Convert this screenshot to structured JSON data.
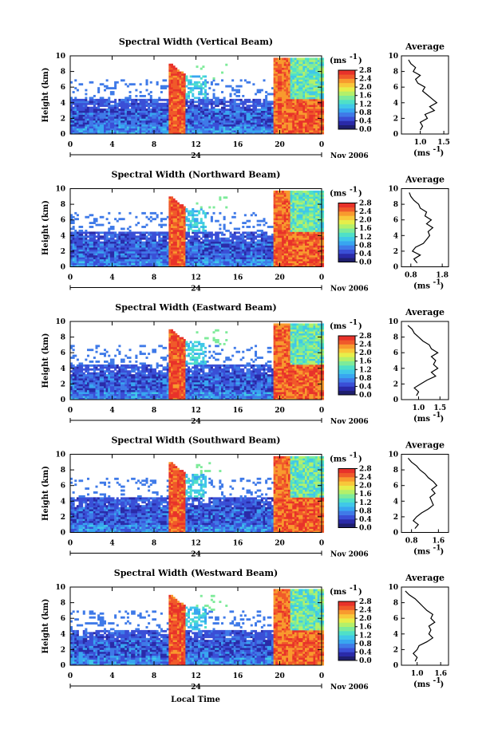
{
  "figure": {
    "xlabel": "Local Time",
    "date_label": "Nov 2006",
    "day_label": "24",
    "unit_label": "(ms",
    "unit_sup": "-1",
    "avg_title": "Average"
  },
  "colors": {
    "scale": [
      "#1f1f6e",
      "#2a2aa8",
      "#3a4fd6",
      "#3f7ae8",
      "#38a6f0",
      "#40c8e8",
      "#4fe0c8",
      "#7eeb9a",
      "#b4f06a",
      "#e6ee4a",
      "#f8c83a",
      "#f89a2e",
      "#f05a2a",
      "#e8322a"
    ]
  },
  "chart_data": [
    {
      "type": "heatmap",
      "title": "Spectral Width (Vertical Beam)",
      "xlabel": "",
      "ylabel": "Height (km)",
      "x_ticks": [
        "0",
        "4",
        "8",
        "12",
        "16",
        "20",
        "0"
      ],
      "y_ticks": [
        "0",
        "2",
        "4",
        "6",
        "8",
        "10"
      ],
      "xlim": [
        0,
        24
      ],
      "ylim": [
        0,
        10
      ],
      "colorbar": {
        "label": "(ms-1)",
        "ticks": [
          "0.0",
          "0.4",
          "0.8",
          "1.2",
          "1.6",
          "2.0",
          "2.4",
          "2.8"
        ],
        "range": [
          0,
          2.8
        ]
      },
      "average": {
        "title": "Average",
        "xlabel": "(ms-1)",
        "x_ticks": [
          "1.0",
          "1.5"
        ],
        "xlim": [
          0.6,
          1.6
        ],
        "height": [
          0.5,
          1,
          1.5,
          2,
          2.5,
          3,
          3.5,
          4,
          4.5,
          5,
          5.5,
          6,
          6.5,
          7,
          7.5,
          8,
          8.5,
          9,
          9.5
        ],
        "values": [
          1.0,
          1.05,
          1.0,
          1.15,
          1.1,
          1.3,
          1.2,
          1.35,
          1.25,
          1.15,
          1.05,
          1.1,
          0.95,
          0.9,
          1.0,
          0.85,
          0.9,
          0.8,
          0.75
        ]
      }
    },
    {
      "type": "heatmap",
      "title": "Spectral Width (Northward Beam)",
      "xlabel": "",
      "ylabel": "Height (km)",
      "x_ticks": [
        "0",
        "4",
        "8",
        "12",
        "16",
        "20",
        "0"
      ],
      "y_ticks": [
        "0",
        "2",
        "4",
        "6",
        "8",
        "10"
      ],
      "xlim": [
        0,
        24
      ],
      "ylim": [
        0,
        10
      ],
      "colorbar": {
        "label": "(ms-1)",
        "ticks": [
          "0.0",
          "0.4",
          "0.8",
          "1.2",
          "1.6",
          "2.0",
          "2.4",
          "2.8"
        ],
        "range": [
          0,
          2.8
        ]
      },
      "average": {
        "title": "Average",
        "xlabel": "(ms-1)",
        "x_ticks": [
          "0.8",
          "1.8"
        ],
        "xlim": [
          0.5,
          2.0
        ],
        "height": [
          0.5,
          1,
          1.5,
          2,
          2.5,
          3,
          3.5,
          4,
          4.5,
          5,
          5.5,
          6,
          6.5,
          7,
          7.5,
          8,
          8.5,
          9,
          9.5
        ],
        "values": [
          1.0,
          0.9,
          1.1,
          0.85,
          0.95,
          1.2,
          1.3,
          1.4,
          1.35,
          1.5,
          1.3,
          1.45,
          1.25,
          1.3,
          1.1,
          1.05,
          0.9,
          0.8,
          0.75
        ]
      }
    },
    {
      "type": "heatmap",
      "title": "Spectral Width (Eastward Beam)",
      "xlabel": "",
      "ylabel": "Height (km)",
      "x_ticks": [
        "0",
        "4",
        "8",
        "12",
        "16",
        "20",
        "0"
      ],
      "y_ticks": [
        "0",
        "2",
        "4",
        "6",
        "8",
        "10"
      ],
      "xlim": [
        0,
        24
      ],
      "ylim": [
        0,
        10
      ],
      "colorbar": {
        "label": "(ms-1)",
        "ticks": [
          "0.0",
          "0.4",
          "0.8",
          "1.2",
          "1.6",
          "2.0",
          "2.4",
          "2.8"
        ],
        "range": [
          0,
          2.8
        ]
      },
      "average": {
        "title": "Average",
        "xlabel": "(ms-1)",
        "x_ticks": [
          "1.0",
          "1.5"
        ],
        "xlim": [
          0.6,
          1.7
        ],
        "height": [
          0.5,
          1,
          1.5,
          2,
          2.5,
          3,
          3.5,
          4,
          4.5,
          5,
          5.5,
          6,
          6.5,
          7,
          7.5,
          8,
          8.5,
          9,
          9.5
        ],
        "values": [
          0.95,
          1.0,
          0.9,
          1.05,
          1.2,
          1.4,
          1.3,
          1.45,
          1.35,
          1.4,
          1.3,
          1.45,
          1.3,
          1.25,
          1.1,
          1.0,
          0.9,
          0.85,
          0.75
        ]
      }
    },
    {
      "type": "heatmap",
      "title": "Spectral Width (Southward Beam)",
      "xlabel": "",
      "ylabel": "Height (km)",
      "x_ticks": [
        "0",
        "4",
        "8",
        "12",
        "16",
        "20",
        "0"
      ],
      "y_ticks": [
        "0",
        "2",
        "4",
        "6",
        "8",
        "10"
      ],
      "xlim": [
        0,
        24
      ],
      "ylim": [
        0,
        10
      ],
      "colorbar": {
        "label": "(ms-1)",
        "ticks": [
          "0.0",
          "0.4",
          "0.8",
          "1.2",
          "1.6",
          "2.0",
          "2.4",
          "2.8"
        ],
        "range": [
          0,
          2.8
        ]
      },
      "average": {
        "title": "Average",
        "xlabel": "(ms-1)",
        "x_ticks": [
          "0.8",
          "1.6"
        ],
        "xlim": [
          0.5,
          1.9
        ],
        "height": [
          0.5,
          1,
          1.5,
          2,
          2.5,
          3,
          3.5,
          4,
          4.5,
          5,
          5.5,
          6,
          6.5,
          7,
          7.5,
          8,
          8.5,
          9,
          9.5
        ],
        "values": [
          0.9,
          1.0,
          0.85,
          0.95,
          1.1,
          1.3,
          1.45,
          1.4,
          1.35,
          1.5,
          1.4,
          1.55,
          1.45,
          1.3,
          1.2,
          1.05,
          0.95,
          0.8,
          0.7
        ]
      }
    },
    {
      "type": "heatmap",
      "title": "Spectral Width (Westward Beam)",
      "xlabel": "Local Time",
      "ylabel": "Height (km)",
      "x_ticks": [
        "0",
        "4",
        "8",
        "12",
        "16",
        "20",
        "0"
      ],
      "y_ticks": [
        "0",
        "2",
        "4",
        "6",
        "8",
        "10"
      ],
      "xlim": [
        0,
        24
      ],
      "ylim": [
        0,
        10
      ],
      "colorbar": {
        "label": "(ms-1)",
        "ticks": [
          "0.0",
          "0.4",
          "0.8",
          "1.2",
          "1.6",
          "2.0",
          "2.4",
          "2.8"
        ],
        "range": [
          0,
          2.8
        ]
      },
      "average": {
        "title": "Average",
        "xlabel": "(ms-1)",
        "x_ticks": [
          "1.0",
          "1.6"
        ],
        "xlim": [
          0.6,
          1.8
        ],
        "height": [
          0.5,
          1,
          1.5,
          2,
          2.5,
          3,
          3.5,
          4,
          4.5,
          5,
          5.5,
          6,
          6.5,
          7,
          7.5,
          8,
          8.5,
          9,
          9.5
        ],
        "values": [
          0.95,
          1.0,
          0.9,
          1.0,
          1.05,
          1.25,
          1.4,
          1.3,
          1.35,
          1.3,
          1.45,
          1.35,
          1.4,
          1.25,
          1.15,
          1.05,
          0.95,
          0.8,
          0.7
        ]
      }
    }
  ]
}
